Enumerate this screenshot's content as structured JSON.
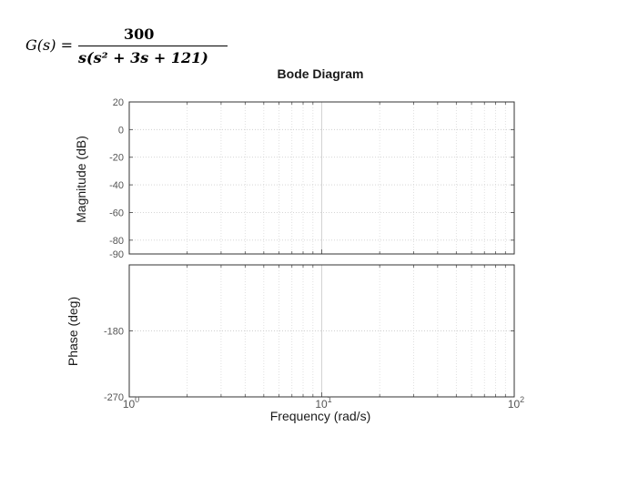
{
  "formula": {
    "lhs": "G(s) =",
    "numerator": "300",
    "denominator": "s(s² + 3s + 121)"
  },
  "chart_data": {
    "type": "line",
    "title": "Bode Diagram",
    "xlabel": "Frequency  (rad/s)",
    "xscale": "log",
    "xlim": [
      1,
      100
    ],
    "x_ticks": [
      {
        "value": 1,
        "base": "10",
        "exp": "0"
      },
      {
        "value": 10,
        "base": "10",
        "exp": "1"
      },
      {
        "value": 100,
        "base": "10",
        "exp": "2"
      }
    ],
    "grid": true,
    "panels": [
      {
        "name": "magnitude",
        "ylabel": "Magnitude (dB)",
        "ylim": [
          -90,
          20
        ],
        "y_ticks": [
          {
            "value": 20,
            "label": "20"
          },
          {
            "value": 0,
            "label": "0"
          },
          {
            "value": -20,
            "label": "-20"
          },
          {
            "value": -40,
            "label": "-40"
          },
          {
            "value": -60,
            "label": "-60"
          },
          {
            "value": -80,
            "label": "-80"
          },
          {
            "value": -90,
            "label": "-90"
          }
        ],
        "series": []
      },
      {
        "name": "phase",
        "ylabel": "Phase (deg)",
        "ylim": [
          -270,
          -90
        ],
        "y_ticks": [
          {
            "value": -180,
            "label": "-180"
          },
          {
            "value": -270,
            "label": "-270"
          }
        ],
        "series": []
      }
    ]
  }
}
